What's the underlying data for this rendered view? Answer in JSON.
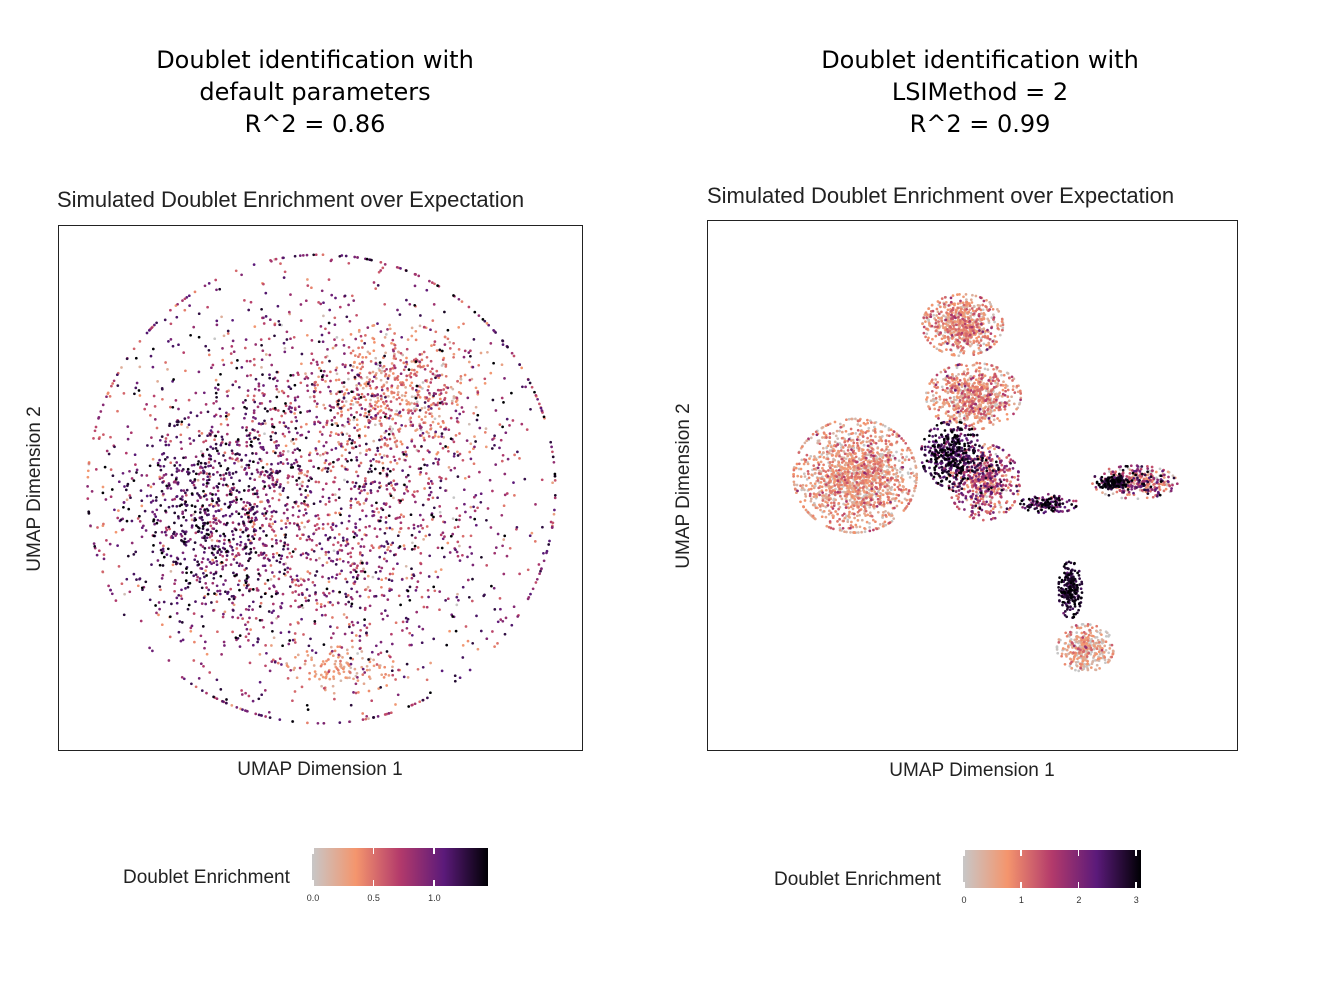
{
  "colors": {
    "scale": [
      "#c7c7c7",
      "#f4956d",
      "#b33a6b",
      "#5b1a7a",
      "#000004"
    ],
    "axis": "#222222"
  },
  "panels": [
    {
      "heading": [
        "Doublet identification with",
        "default parameters",
        "R^2 = 0.86"
      ],
      "r_squared": 0.86,
      "legend": {
        "title": "Doublet Enrichment",
        "ticks": [
          "0.0",
          "0.5",
          "1.0"
        ]
      },
      "colorbar_range": [
        0,
        1.45
      ]
    },
    {
      "heading": [
        "Doublet identification with",
        "LSIMethod = 2",
        "R^2 = 0.99"
      ],
      "r_squared": 0.99,
      "legend": {
        "title": "Doublet Enrichment",
        "ticks": [
          "0",
          "1",
          "2",
          "3"
        ]
      },
      "colorbar_range": [
        0,
        3.1
      ]
    }
  ],
  "chart_data": [
    {
      "type": "scatter",
      "title": "Simulated Doublet Enrichment over Expectation",
      "xlabel": "UMAP Dimension 1",
      "ylabel": "UMAP Dimension 2",
      "color_variable": "Doublet Enrichment",
      "color_range": [
        0,
        1.45
      ],
      "color_ticks": [
        0,
        0.5,
        1.0
      ],
      "axis_ticks_shown": false,
      "grid": false,
      "legend_placement": "bottom",
      "clusters": [
        {
          "region": "single large round cloud",
          "center": [
            0.0,
            0.0
          ],
          "spread": [
            1.0,
            1.0
          ],
          "points": 2600,
          "enrichment_mean": 0.85,
          "enrichment_sd": 0.35
        },
        {
          "region": "upper-right lighter area",
          "center": [
            0.35,
            0.45
          ],
          "spread": [
            0.35,
            0.3
          ],
          "points": 500,
          "enrichment_mean": 0.4,
          "enrichment_sd": 0.2
        },
        {
          "region": "left darker area",
          "center": [
            -0.55,
            -0.15
          ],
          "spread": [
            0.35,
            0.45
          ],
          "points": 500,
          "enrichment_mean": 1.2,
          "enrichment_sd": 0.2
        },
        {
          "region": "bottom light patch",
          "center": [
            0.1,
            -0.85
          ],
          "spread": [
            0.25,
            0.1
          ],
          "points": 120,
          "enrichment_mean": 0.3,
          "enrichment_sd": 0.12
        }
      ]
    },
    {
      "type": "scatter",
      "title": "Simulated Doublet Enrichment over Expectation",
      "xlabel": "UMAP Dimension 1",
      "ylabel": "UMAP Dimension 2",
      "color_variable": "Doublet Enrichment",
      "color_range": [
        0,
        3.1
      ],
      "color_ticks": [
        0,
        1,
        2,
        3
      ],
      "axis_ticks_shown": false,
      "grid": false,
      "legend_placement": "bottom",
      "clusters": [
        {
          "region": "top cluster",
          "center": [
            -0.05,
            0.75
          ],
          "spread": [
            0.17,
            0.13
          ],
          "points": 700,
          "enrichment_mean": 0.6,
          "enrichment_sd": 0.5
        },
        {
          "region": "upper-middle cluster",
          "center": [
            0.0,
            0.42
          ],
          "spread": [
            0.2,
            0.14
          ],
          "points": 700,
          "enrichment_mean": 0.7,
          "enrichment_sd": 0.5
        },
        {
          "region": "left large cluster",
          "center": [
            -0.55,
            0.05
          ],
          "spread": [
            0.26,
            0.24
          ],
          "points": 1500,
          "enrichment_mean": 0.55,
          "enrichment_sd": 0.45
        },
        {
          "region": "central dark core",
          "center": [
            -0.1,
            0.15
          ],
          "spread": [
            0.13,
            0.14
          ],
          "points": 450,
          "enrichment_mean": 2.6,
          "enrichment_sd": 0.5
        },
        {
          "region": "center-right cluster",
          "center": [
            0.05,
            0.02
          ],
          "spread": [
            0.15,
            0.16
          ],
          "points": 500,
          "enrichment_mean": 1.4,
          "enrichment_sd": 0.7
        },
        {
          "region": "right branch",
          "center": [
            0.75,
            0.02
          ],
          "spread": [
            0.18,
            0.07
          ],
          "points": 350,
          "enrichment_mean": 1.3,
          "enrichment_sd": 1.0
        },
        {
          "region": "right branch dark core",
          "center": [
            0.65,
            0.02
          ],
          "spread": [
            0.07,
            0.03
          ],
          "points": 120,
          "enrichment_mean": 2.9,
          "enrichment_sd": 0.2
        },
        {
          "region": "diagonal stream",
          "center": [
            0.35,
            -0.08
          ],
          "spread": [
            0.12,
            0.04
          ],
          "points": 150,
          "enrichment_mean": 2.5,
          "enrichment_sd": 0.6
        },
        {
          "region": "bottom branch dark",
          "center": [
            0.45,
            -0.48
          ],
          "spread": [
            0.05,
            0.12
          ],
          "points": 220,
          "enrichment_mean": 2.8,
          "enrichment_sd": 0.3
        },
        {
          "region": "bottom branch tail",
          "center": [
            0.52,
            -0.75
          ],
          "spread": [
            0.12,
            0.1
          ],
          "points": 350,
          "enrichment_mean": 0.4,
          "enrichment_sd": 0.5
        }
      ]
    }
  ]
}
